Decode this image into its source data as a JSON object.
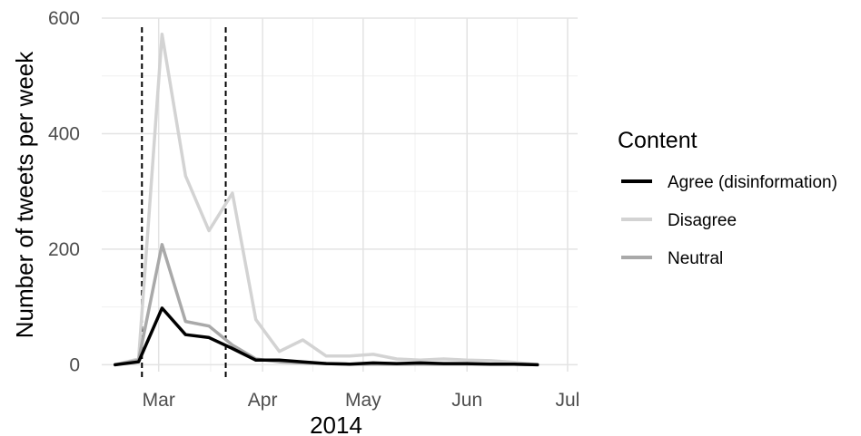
{
  "chart_data": {
    "type": "line",
    "xlabel": "2014",
    "ylabel": "Number of tweets per week",
    "x_ticks": [
      "Mar",
      "Apr",
      "May",
      "Jun",
      "Jul"
    ],
    "x_tick_dates": [
      "2014-03-01",
      "2014-04-01",
      "2014-05-01",
      "2014-06-01",
      "2014-07-01"
    ],
    "y_ticks": [
      0,
      200,
      400,
      600
    ],
    "xlim": [
      "2014-02-12",
      "2014-07-04"
    ],
    "ylim": [
      -12,
      600
    ],
    "grid": true,
    "vlines": [
      "2014-02-24",
      "2014-03-21"
    ],
    "legend": {
      "title": "Content",
      "position": "right"
    },
    "x": [
      "2014-02-16",
      "2014-02-23",
      "2014-03-02",
      "2014-03-09",
      "2014-03-16",
      "2014-03-23",
      "2014-03-30",
      "2014-04-06",
      "2014-04-13",
      "2014-04-20",
      "2014-04-27",
      "2014-05-04",
      "2014-05-11",
      "2014-05-18",
      "2014-05-25",
      "2014-06-01",
      "2014-06-08",
      "2014-06-15",
      "2014-06-22"
    ],
    "series": [
      {
        "name": "Agree (disinformation)",
        "color": "#000000",
        "values": [
          0,
          5,
          98,
          52,
          47,
          28,
          8,
          8,
          5,
          2,
          1,
          3,
          2,
          3,
          2,
          2,
          1,
          1,
          0
        ]
      },
      {
        "name": "Disagree",
        "color": "#d3d3d3",
        "values": [
          0,
          10,
          572,
          327,
          232,
          297,
          78,
          23,
          43,
          15,
          15,
          18,
          10,
          8,
          10,
          8,
          7,
          4,
          0
        ]
      },
      {
        "name": "Neutral",
        "color": "#a9a9a9",
        "values": [
          0,
          8,
          208,
          75,
          67,
          34,
          10,
          5,
          3,
          2,
          1,
          1,
          1,
          1,
          1,
          1,
          1,
          1,
          0
        ]
      }
    ]
  }
}
